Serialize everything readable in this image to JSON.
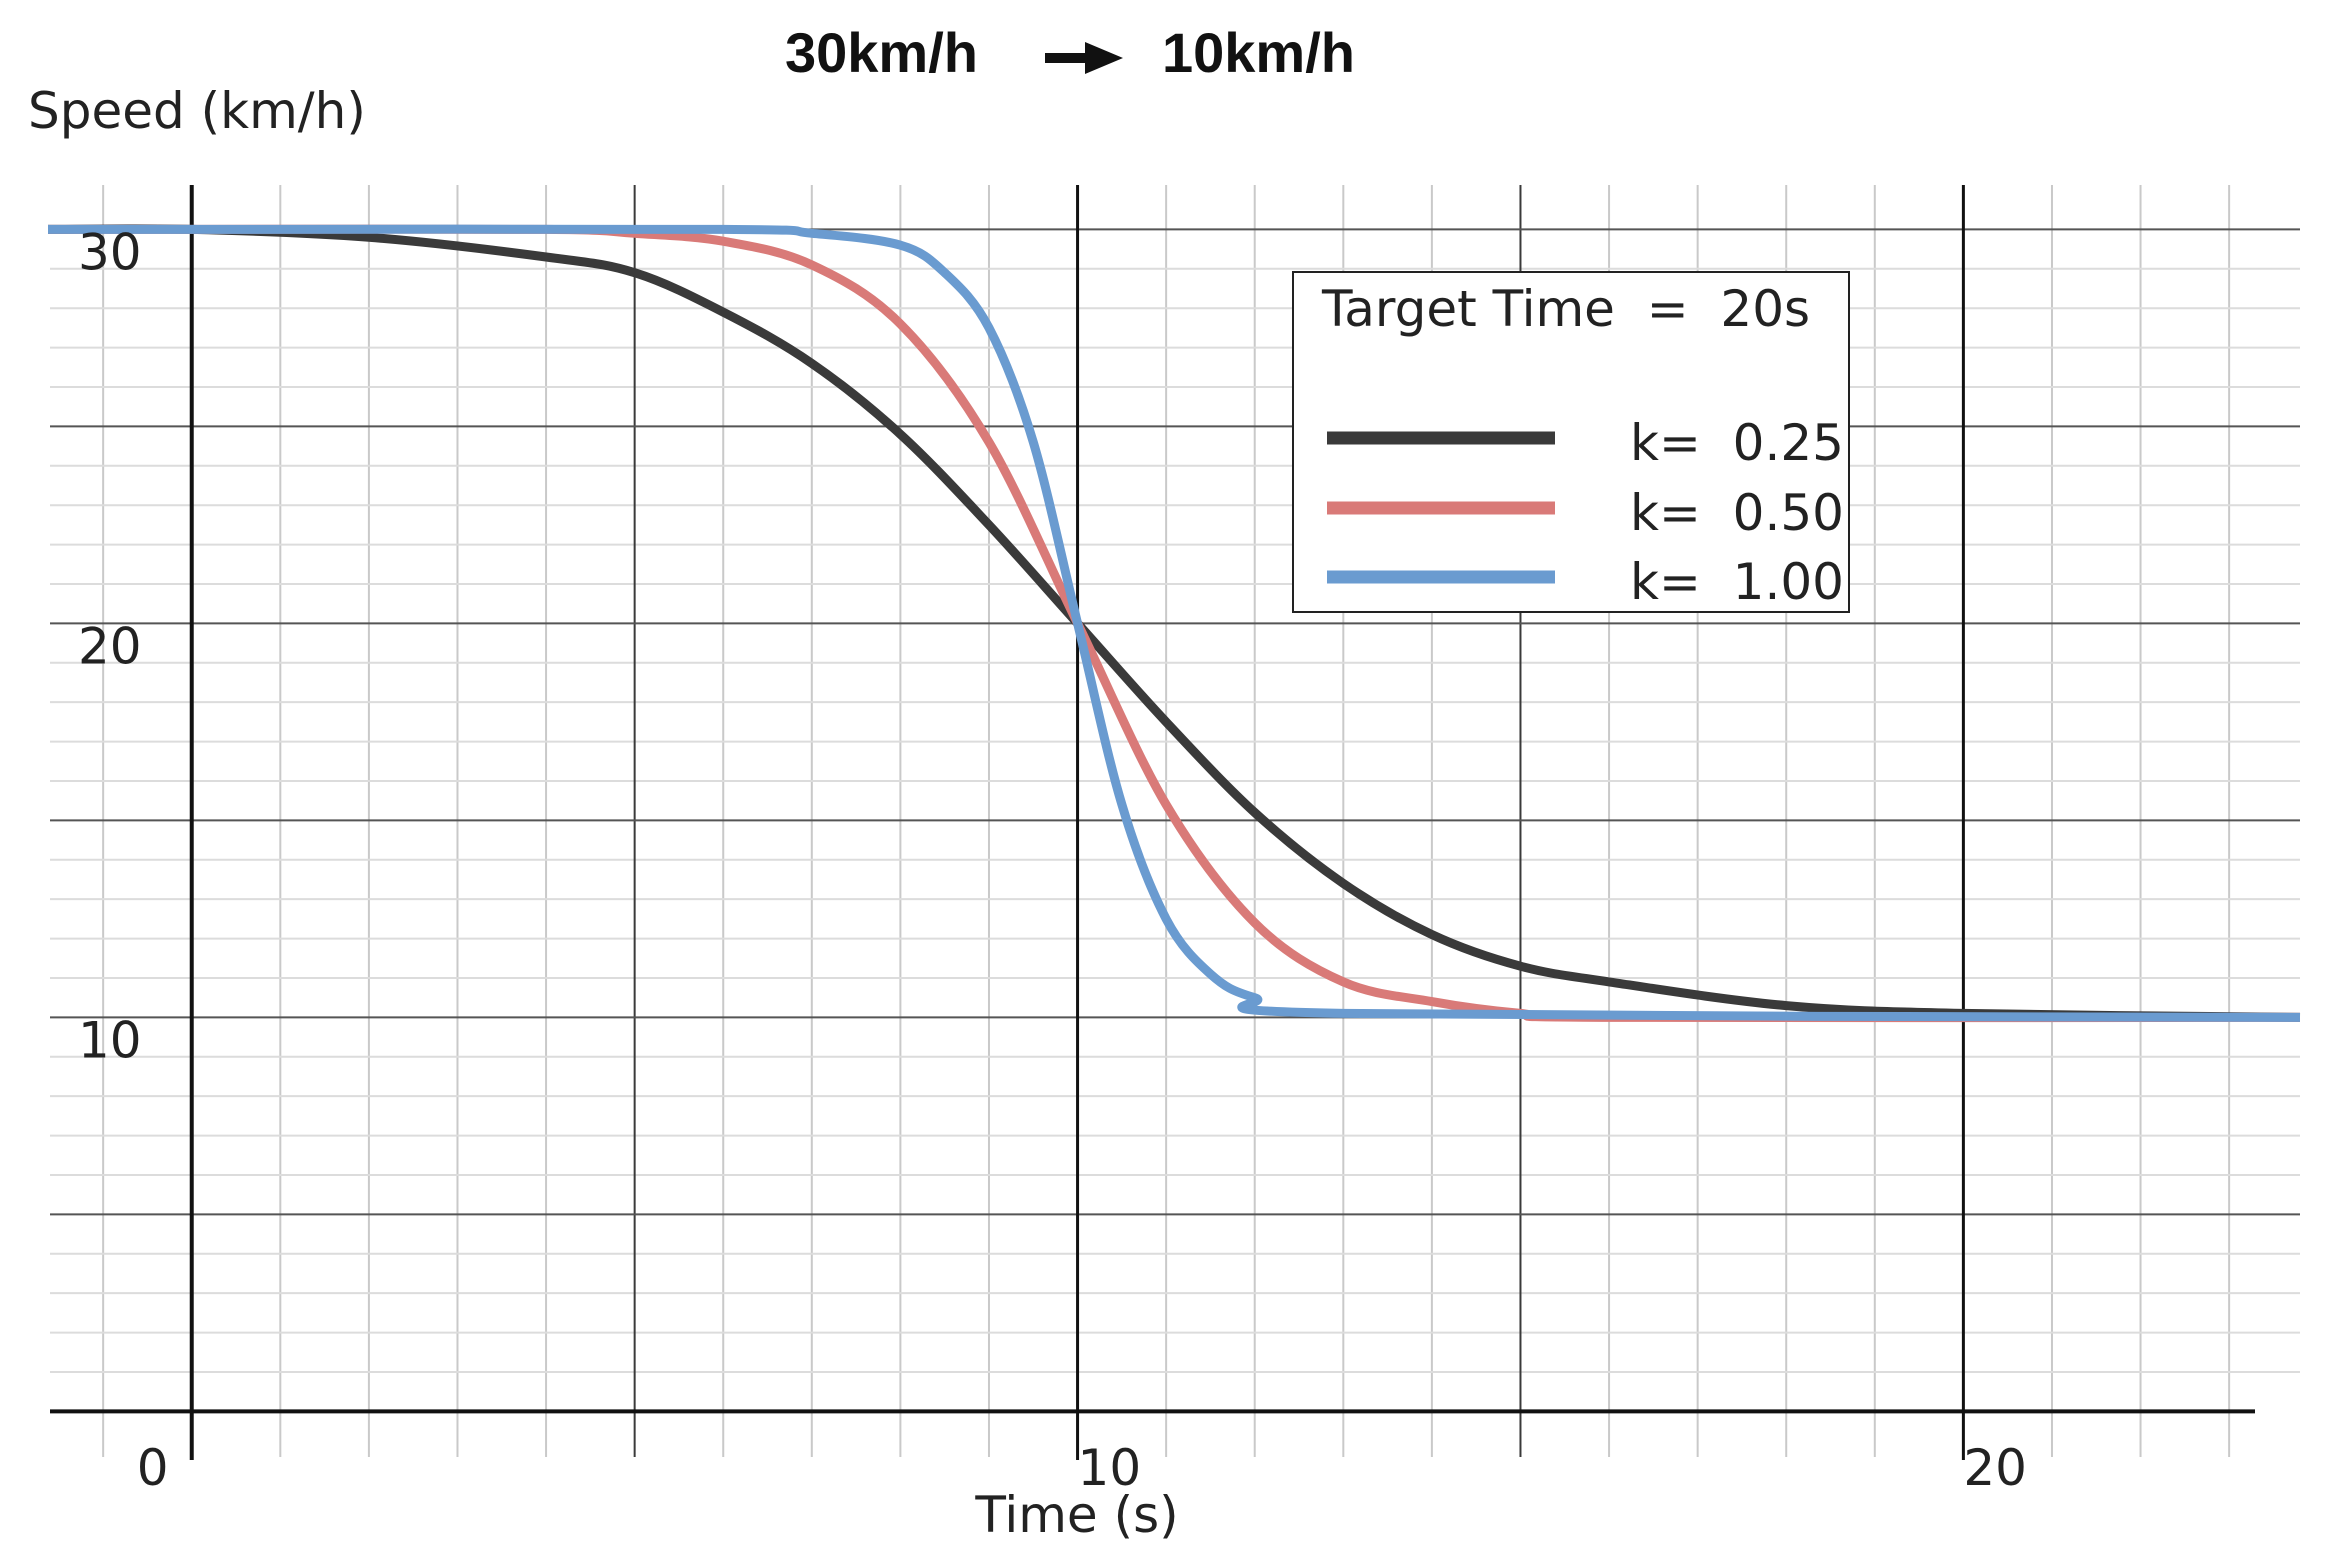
{
  "chart_data": {
    "type": "line",
    "title_left": "30km/h",
    "title_right": "10km/h",
    "xlabel": "Time (s)",
    "ylabel": "Speed (km/h)",
    "xlim": [
      -1.6,
      23.8
    ],
    "ylim": [
      -0.6,
      31.0
    ],
    "x_ticks": [
      {
        "value": 0,
        "label": "0"
      },
      {
        "value": 10,
        "label": "10"
      },
      {
        "value": 20,
        "label": "20"
      }
    ],
    "y_ticks": [
      {
        "value": 10,
        "label": "10"
      },
      {
        "value": 20,
        "label": "20"
      },
      {
        "value": 30,
        "label": "30"
      }
    ],
    "grid": true,
    "legend": {
      "position": "upper-right",
      "title": "Target Time  =  20s",
      "entries": [
        "k=  0.25",
        "k=  0.50",
        "k=  1.00"
      ]
    },
    "series": [
      {
        "k": 0.25,
        "color": "#3a3a3a",
        "x": [
          0,
          2,
          4,
          5,
          6,
          7,
          8,
          9,
          10,
          11,
          12,
          13,
          14,
          15,
          16,
          18,
          20,
          23.8
        ],
        "y": [
          30.0,
          29.8,
          29.3,
          28.9,
          27.9,
          26.6,
          24.8,
          22.5,
          20.0,
          17.5,
          15.2,
          13.4,
          12.1,
          11.3,
          10.9,
          10.3,
          10.1,
          10.0
        ]
      },
      {
        "k": 0.5,
        "color": "#d97a78",
        "x": [
          0,
          4,
          5,
          6,
          7,
          8,
          9,
          10,
          11,
          12,
          13,
          14,
          15,
          16,
          23.8
        ],
        "y": [
          30.0,
          30.0,
          29.9,
          29.7,
          29.1,
          27.6,
          24.6,
          20.0,
          15.4,
          12.4,
          10.9,
          10.4,
          10.1,
          10.0,
          10.0
        ]
      },
      {
        "k": 1.0,
        "color": "#6a9bd0",
        "x": [
          0,
          6,
          7,
          8,
          8.5,
          9,
          9.5,
          10,
          10.5,
          11,
          11.5,
          12,
          13,
          23.8
        ],
        "y": [
          30.0,
          30.0,
          29.9,
          29.6,
          28.9,
          27.5,
          24.6,
          20.0,
          15.4,
          12.5,
          11.1,
          10.5,
          10.1,
          10.0
        ]
      }
    ]
  }
}
